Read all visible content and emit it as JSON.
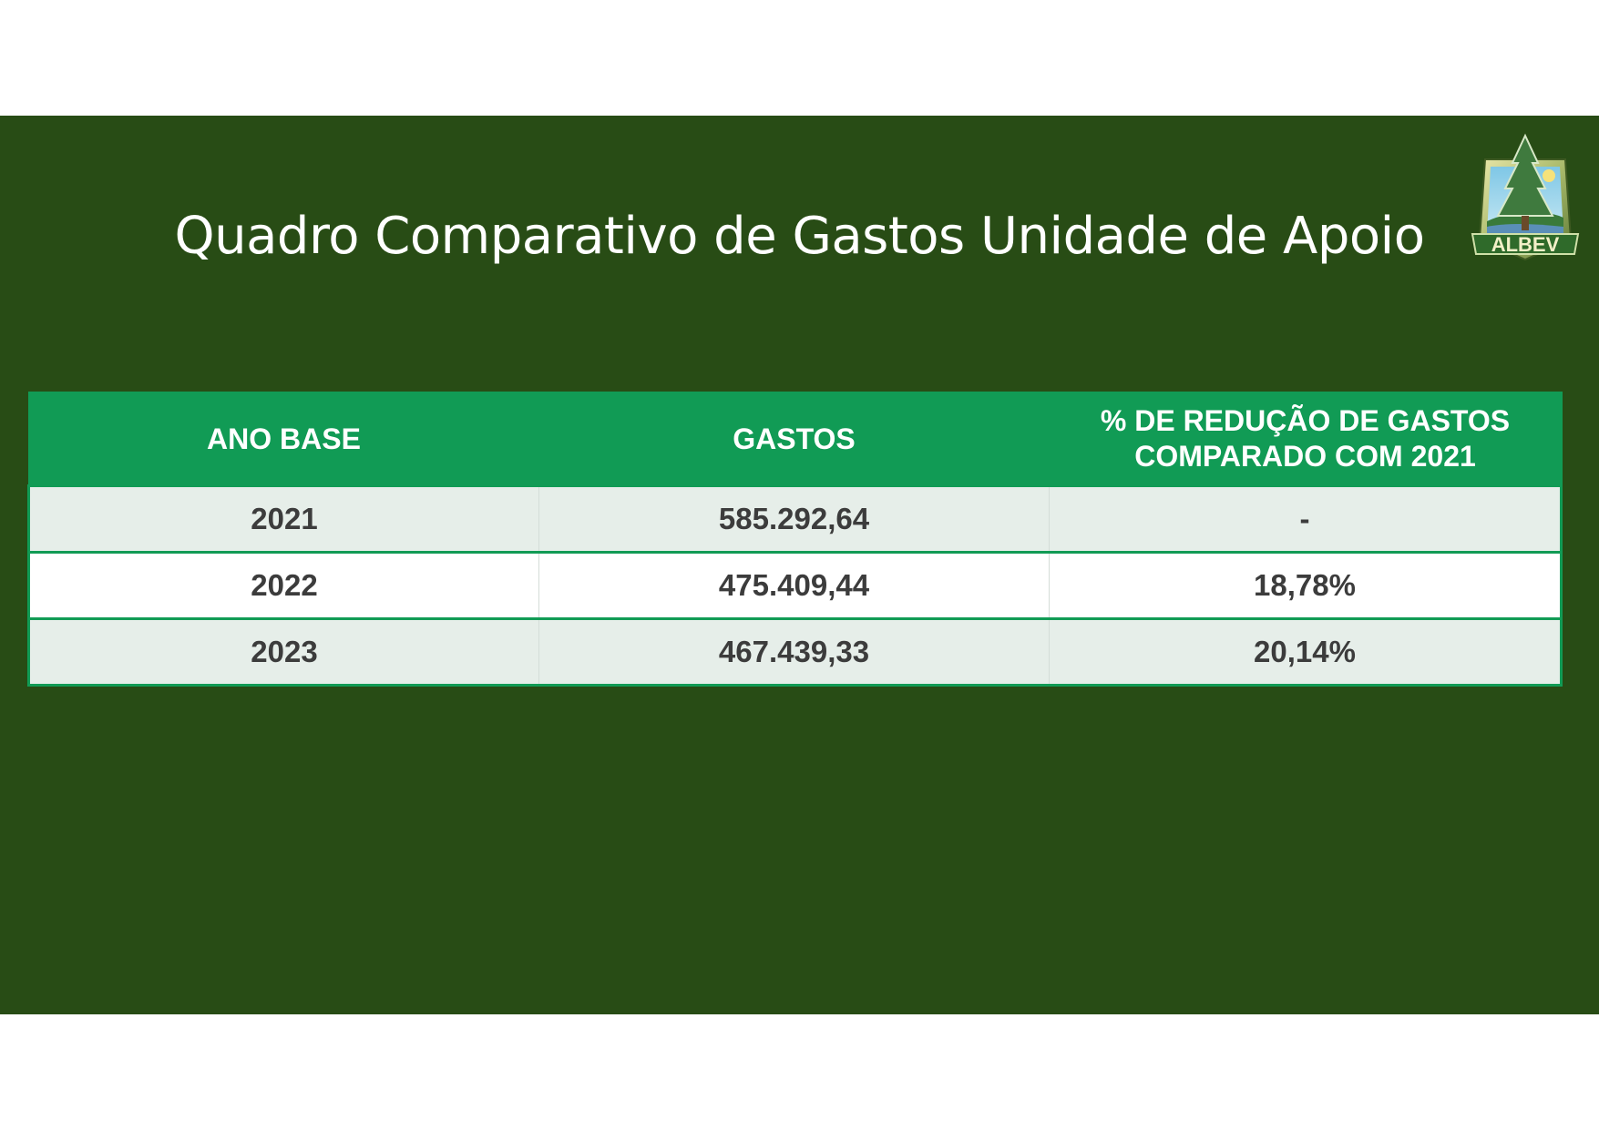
{
  "slide": {
    "title": "Quadro Comparativo de Gastos Unidade de Apoio",
    "logo": {
      "text": "ALBEV",
      "icon": "pine-tree-logo"
    },
    "colors": {
      "background": "#284c15",
      "header": "#119b55",
      "row_alt": "#e6eee9"
    }
  },
  "table": {
    "headers": [
      "ANO BASE",
      "GASTOS",
      "% DE REDUÇÃO DE GASTOS COMPARADO COM 2021"
    ],
    "rows": [
      {
        "ano": "2021",
        "gastos": "585.292,64",
        "reducao": "-"
      },
      {
        "ano": "2022",
        "gastos": "475.409,44",
        "reducao": "18,78%"
      },
      {
        "ano": "2023",
        "gastos": "467.439,33",
        "reducao": "20,14%"
      }
    ]
  }
}
